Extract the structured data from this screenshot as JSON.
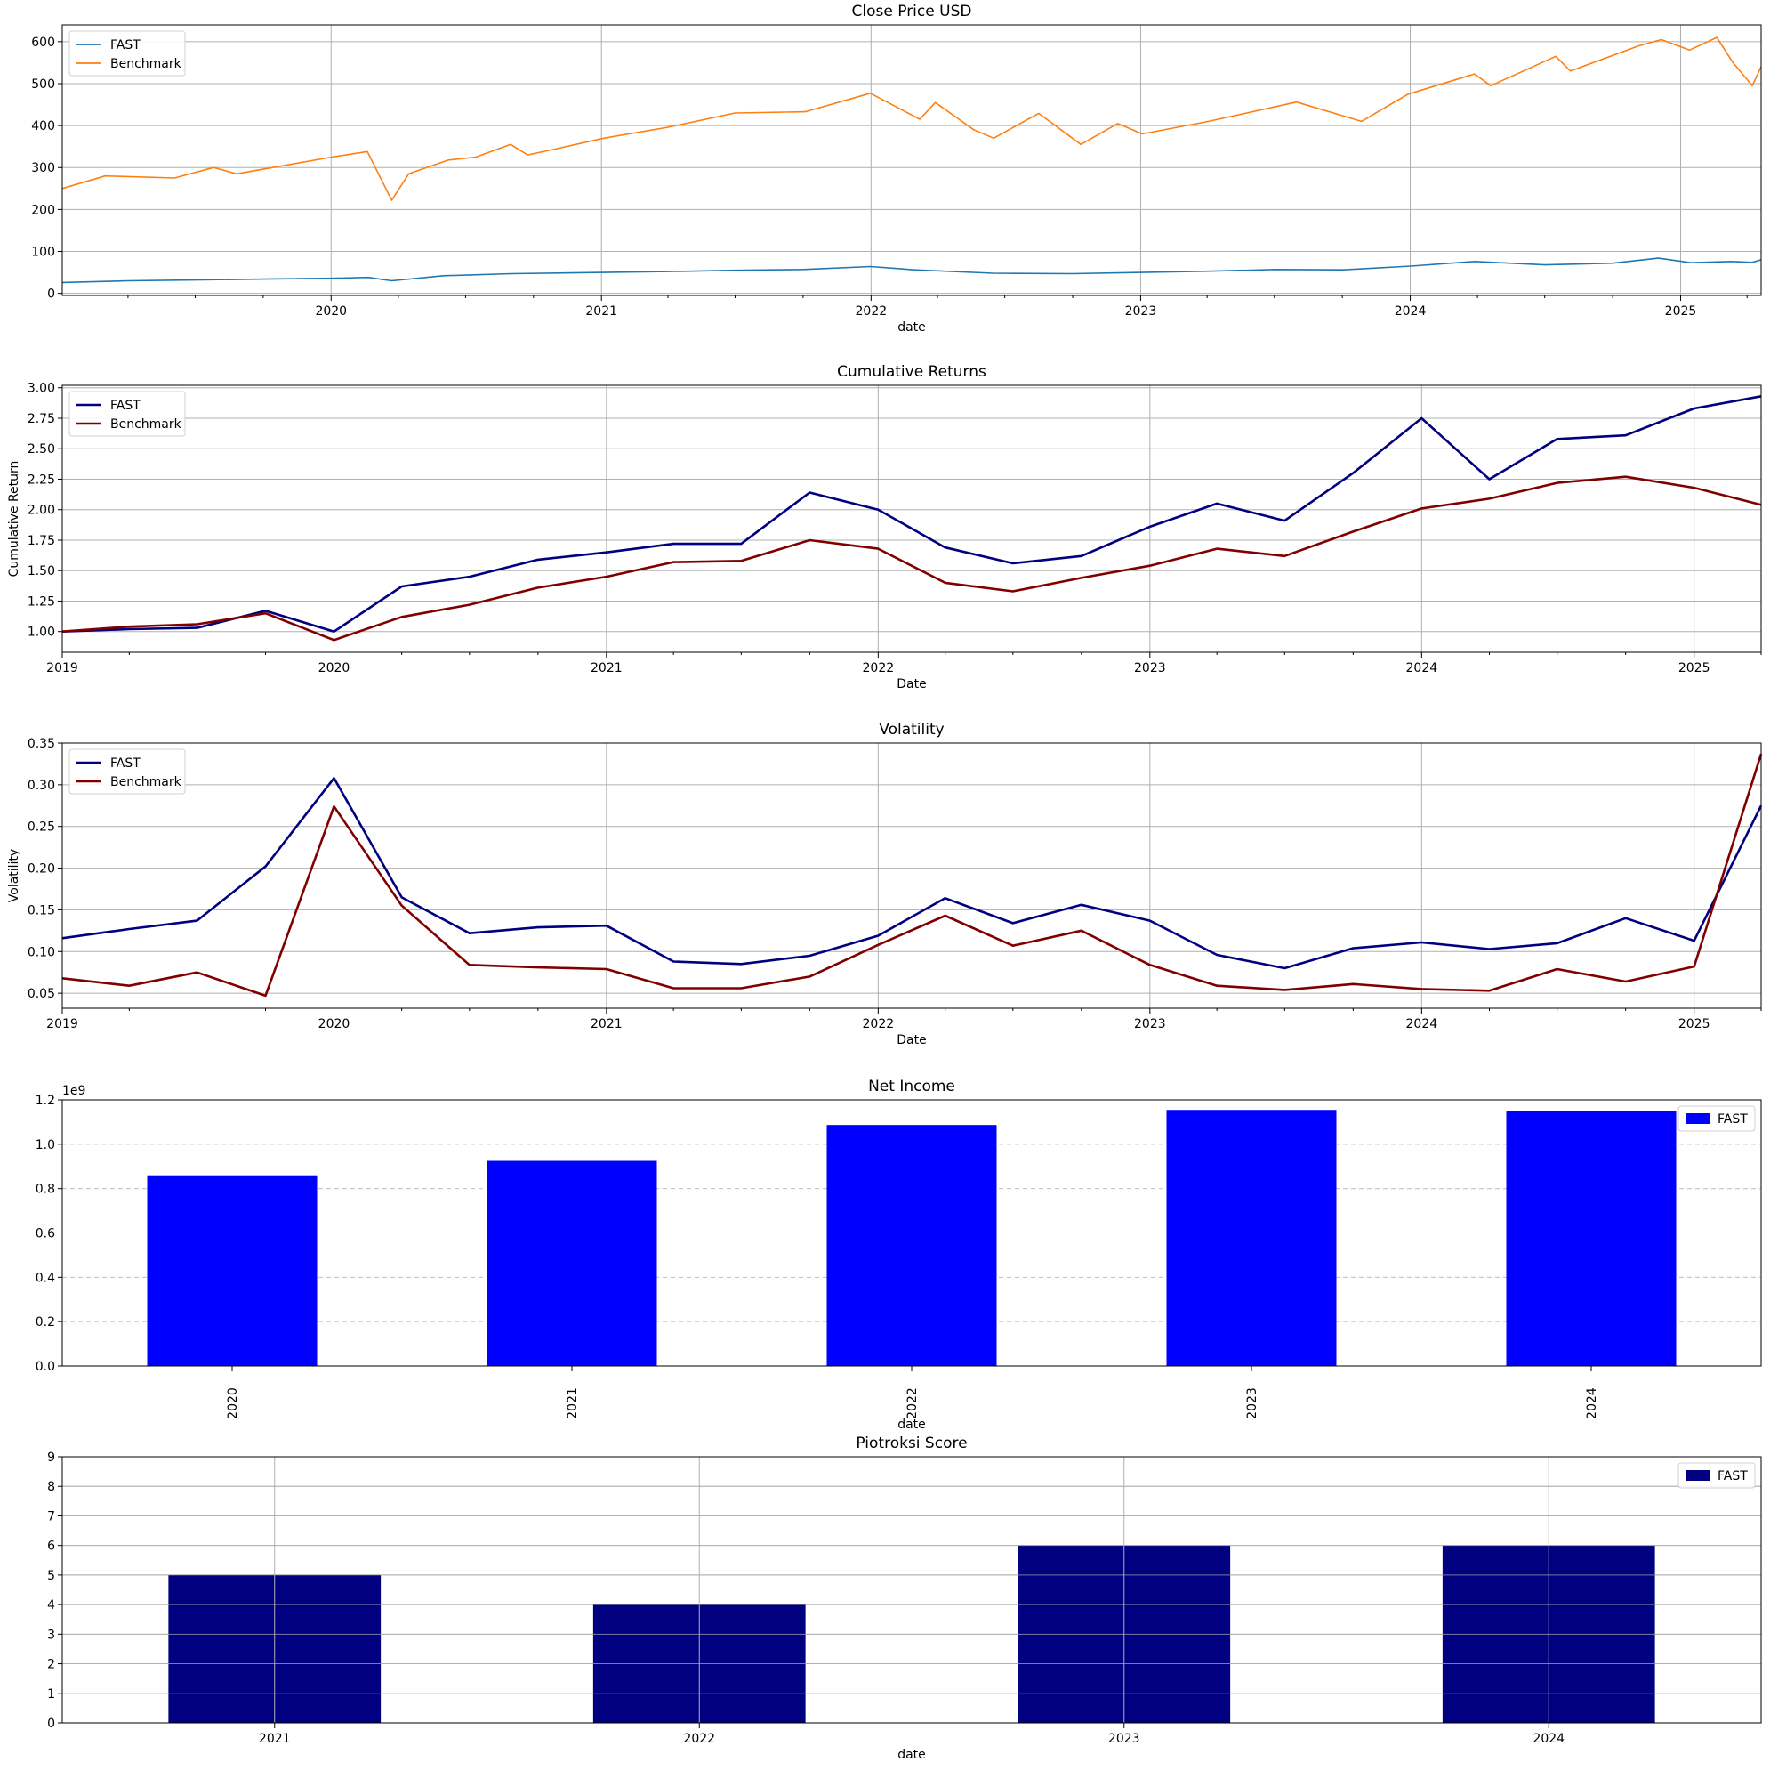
{
  "chart_data": [
    {
      "type": "line",
      "title": "Close Price USD",
      "xlabel": "date",
      "ylabel": "",
      "x_range": [
        "2019-01-02",
        "2025-04-20"
      ],
      "ylim": [
        -5,
        640
      ],
      "y_ticks": [
        0,
        100,
        200,
        300,
        400,
        500,
        600
      ],
      "x_ticks": [
        "2020",
        "2021",
        "2022",
        "2023",
        "2024",
        "2025"
      ],
      "grid": true,
      "legend": "top-left",
      "series": [
        {
          "name": "FAST",
          "color": "#1f77b4",
          "x": [
            "2019-01-02",
            "2019-04-01",
            "2019-07-01",
            "2019-10-01",
            "2020-01-02",
            "2020-02-20",
            "2020-03-23",
            "2020-06-01",
            "2020-09-01",
            "2021-01-04",
            "2021-04-01",
            "2021-07-01",
            "2021-10-01",
            "2021-12-31",
            "2022-03-01",
            "2022-06-15",
            "2022-09-30",
            "2023-01-03",
            "2023-04-03",
            "2023-07-03",
            "2023-10-02",
            "2024-01-02",
            "2024-03-28",
            "2024-07-01",
            "2024-10-01",
            "2024-12-02",
            "2025-01-15",
            "2025-03-10",
            "2025-04-08",
            "2025-04-20"
          ],
          "y": [
            26,
            30,
            32,
            34,
            36,
            38,
            30,
            42,
            47,
            50,
            52,
            55,
            57,
            64,
            56,
            48,
            47,
            50,
            53,
            57,
            56,
            65,
            76,
            68,
            72,
            84,
            73,
            76,
            74,
            80
          ]
        },
        {
          "name": "Benchmark",
          "color": "#ff7f0e",
          "x": [
            "2019-01-02",
            "2019-03-01",
            "2019-06-03",
            "2019-07-26",
            "2019-08-26",
            "2019-10-01",
            "2020-01-02",
            "2020-02-19",
            "2020-03-23",
            "2020-04-15",
            "2020-06-08",
            "2020-07-15",
            "2020-08-31",
            "2020-09-23",
            "2020-11-02",
            "2021-01-04",
            "2021-04-01",
            "2021-07-01",
            "2021-10-04",
            "2021-12-31",
            "2022-03-08",
            "2022-03-29",
            "2022-05-20",
            "2022-06-16",
            "2022-08-16",
            "2022-10-12",
            "2022-12-01",
            "2023-01-03",
            "2023-04-03",
            "2023-07-31",
            "2023-10-27",
            "2023-12-29",
            "2024-03-28",
            "2024-04-19",
            "2024-07-16",
            "2024-08-05",
            "2024-11-05",
            "2024-12-06",
            "2025-01-13",
            "2025-02-19",
            "2025-03-13",
            "2025-04-08",
            "2025-04-20"
          ],
          "y": [
            250,
            280,
            275,
            300,
            285,
            296,
            325,
            338,
            222,
            285,
            318,
            325,
            355,
            330,
            345,
            370,
            396,
            430,
            433,
            477,
            415,
            455,
            390,
            370,
            429,
            355,
            405,
            380,
            410,
            456,
            410,
            475,
            523,
            495,
            565,
            530,
            590,
            605,
            580,
            610,
            550,
            495,
            540
          ]
        }
      ]
    },
    {
      "type": "line",
      "title": "Cumulative Returns",
      "xlabel": "Date",
      "ylabel": "Cumulative Return",
      "x_range": [
        "2019-01-01",
        "2025-04-01"
      ],
      "ylim": [
        0.83,
        3.02
      ],
      "y_ticks": [
        "1.00",
        "1.25",
        "1.50",
        "1.75",
        "2.00",
        "2.25",
        "2.50",
        "2.75",
        "3.00"
      ],
      "x_ticks": [
        "2019",
        "2020",
        "2021",
        "2022",
        "2023",
        "2024",
        "2025"
      ],
      "grid": true,
      "legend": "top-left",
      "series": [
        {
          "name": "FAST",
          "color": "#000080",
          "x": [
            "2019-01-01",
            "2019-04-01",
            "2019-07-01",
            "2019-10-01",
            "2020-01-01",
            "2020-04-01",
            "2020-07-01",
            "2020-10-01",
            "2021-01-01",
            "2021-04-01",
            "2021-07-01",
            "2021-10-01",
            "2022-01-01",
            "2022-04-01",
            "2022-07-01",
            "2022-10-01",
            "2023-01-01",
            "2023-04-01",
            "2023-07-01",
            "2023-10-01",
            "2024-01-01",
            "2024-04-01",
            "2024-07-01",
            "2024-10-01",
            "2025-01-01",
            "2025-04-01"
          ],
          "y": [
            1.0,
            1.02,
            1.03,
            1.17,
            1.0,
            1.37,
            1.45,
            1.59,
            1.65,
            1.72,
            1.72,
            2.14,
            2.0,
            1.69,
            1.56,
            1.62,
            1.86,
            2.05,
            1.91,
            2.3,
            2.75,
            2.25,
            2.58,
            2.61,
            2.83,
            2.93
          ]
        },
        {
          "name": "Benchmark",
          "color": "#800000",
          "x": [
            "2019-01-01",
            "2019-04-01",
            "2019-07-01",
            "2019-10-01",
            "2020-01-01",
            "2020-04-01",
            "2020-07-01",
            "2020-10-01",
            "2021-01-01",
            "2021-04-01",
            "2021-07-01",
            "2021-10-01",
            "2022-01-01",
            "2022-04-01",
            "2022-07-01",
            "2022-10-01",
            "2023-01-01",
            "2023-04-01",
            "2023-07-01",
            "2023-10-01",
            "2024-01-01",
            "2024-04-01",
            "2024-07-01",
            "2024-10-01",
            "2025-01-01",
            "2025-04-01"
          ],
          "y": [
            1.0,
            1.04,
            1.06,
            1.15,
            0.93,
            1.12,
            1.22,
            1.36,
            1.45,
            1.57,
            1.58,
            1.75,
            1.68,
            1.4,
            1.33,
            1.44,
            1.54,
            1.68,
            1.62,
            1.82,
            2.01,
            2.09,
            2.22,
            2.27,
            2.18,
            2.04
          ]
        }
      ]
    },
    {
      "type": "line",
      "title": "Volatility",
      "xlabel": "Date",
      "ylabel": "Volatility",
      "x_range": [
        "2019-01-01",
        "2025-04-01"
      ],
      "ylim": [
        0.032,
        0.35
      ],
      "y_ticks": [
        "0.05",
        "0.10",
        "0.15",
        "0.20",
        "0.25",
        "0.30",
        "0.35"
      ],
      "x_ticks": [
        "2019",
        "2020",
        "2021",
        "2022",
        "2023",
        "2024",
        "2025"
      ],
      "grid": true,
      "legend": "top-left",
      "series": [
        {
          "name": "FAST",
          "color": "#000080",
          "x": [
            "2019-01-01",
            "2019-04-01",
            "2019-07-01",
            "2019-10-01",
            "2020-01-01",
            "2020-04-01",
            "2020-07-01",
            "2020-10-01",
            "2021-01-01",
            "2021-04-01",
            "2021-07-01",
            "2021-10-01",
            "2022-01-01",
            "2022-04-01",
            "2022-07-01",
            "2022-10-01",
            "2023-01-01",
            "2023-04-01",
            "2023-07-01",
            "2023-10-01",
            "2024-01-01",
            "2024-04-01",
            "2024-07-01",
            "2024-10-01",
            "2025-01-01",
            "2025-04-01"
          ],
          "y": [
            0.116,
            0.127,
            0.137,
            0.202,
            0.308,
            0.165,
            0.122,
            0.129,
            0.131,
            0.088,
            0.085,
            0.095,
            0.119,
            0.164,
            0.134,
            0.156,
            0.137,
            0.096,
            0.08,
            0.104,
            0.111,
            0.103,
            0.11,
            0.14,
            0.113,
            0.275
          ]
        },
        {
          "name": "Benchmark",
          "color": "#800000",
          "x": [
            "2019-01-01",
            "2019-04-01",
            "2019-07-01",
            "2019-10-01",
            "2020-01-01",
            "2020-04-01",
            "2020-07-01",
            "2020-10-01",
            "2021-01-01",
            "2021-04-01",
            "2021-07-01",
            "2021-10-01",
            "2022-01-01",
            "2022-04-01",
            "2022-07-01",
            "2022-10-01",
            "2023-01-01",
            "2023-04-01",
            "2023-07-01",
            "2023-10-01",
            "2024-01-01",
            "2024-04-01",
            "2024-07-01",
            "2024-10-01",
            "2025-01-01",
            "2025-04-01"
          ],
          "y": [
            0.068,
            0.059,
            0.075,
            0.047,
            0.274,
            0.155,
            0.084,
            0.081,
            0.079,
            0.056,
            0.056,
            0.07,
            0.108,
            0.143,
            0.107,
            0.125,
            0.084,
            0.059,
            0.054,
            0.061,
            0.055,
            0.053,
            0.079,
            0.064,
            0.082,
            0.337
          ]
        }
      ]
    },
    {
      "type": "bar",
      "title": "Net Income",
      "xlabel": "date",
      "ylabel": "",
      "offset_label": "1e9",
      "categories": [
        "2020",
        "2021",
        "2022",
        "2023",
        "2024"
      ],
      "ylim": [
        0,
        1.2
      ],
      "y_ticks": [
        "0.0",
        "0.2",
        "0.4",
        "0.6",
        "0.8",
        "1.0",
        "1.2"
      ],
      "grid": "y-dashed",
      "legend": "top-right",
      "series": [
        {
          "name": "FAST",
          "color": "#0000ff",
          "values": [
            0.86,
            0.925,
            1.087,
            1.155,
            1.15
          ]
        }
      ]
    },
    {
      "type": "bar",
      "title": "Piotroksi Score",
      "xlabel": "date",
      "ylabel": "",
      "categories": [
        "2021",
        "2022",
        "2023",
        "2024"
      ],
      "ylim": [
        0,
        9
      ],
      "y_ticks": [
        "0",
        "1",
        "2",
        "3",
        "4",
        "5",
        "6",
        "7",
        "8",
        "9"
      ],
      "grid": true,
      "legend": "top-right",
      "series": [
        {
          "name": "FAST",
          "color": "#000080",
          "values": [
            5,
            4,
            6,
            6
          ]
        }
      ]
    }
  ]
}
